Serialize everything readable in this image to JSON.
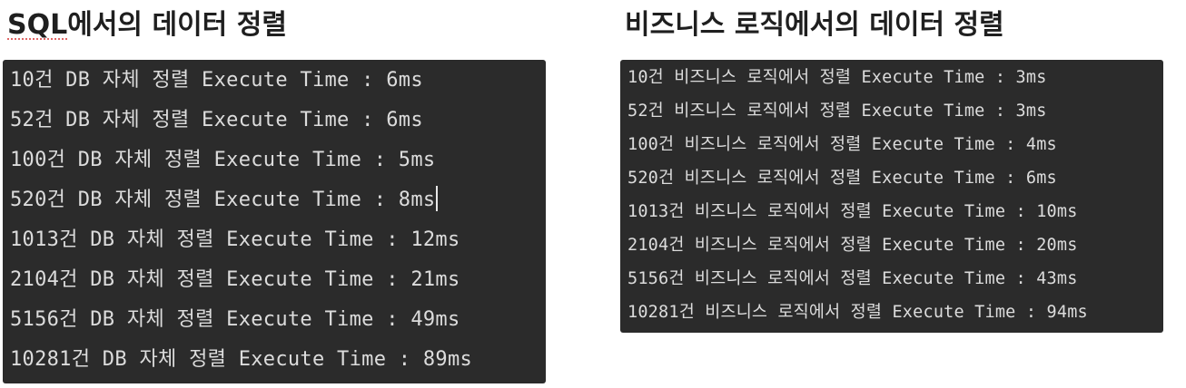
{
  "left": {
    "title_prefix": "SQL",
    "title_rest": "에서의 데이터 정렬",
    "lines": [
      "10건 DB 자체 정렬 Execute Time : 6ms",
      "52건 DB 자체 정렬 Execute Time : 6ms",
      "100건 DB 자체 정렬 Execute Time : 5ms",
      "520건 DB 자체 정렬 Execute Time : 8ms",
      "1013건 DB 자체 정렬 Execute Time : 12ms",
      "2104건 DB 자체 정렬 Execute Time : 21ms",
      "5156건 DB 자체 정렬 Execute Time : 49ms",
      "10281건 DB 자체 정렬 Execute Time : 89ms"
    ]
  },
  "right": {
    "title": "비즈니스 로직에서의 데이터 정렬",
    "lines": [
      "10건 비즈니스 로직에서 정렬 Execute Time : 3ms",
      "52건 비즈니스 로직에서 정렬 Execute Time : 3ms",
      "100건 비즈니스 로직에서 정렬 Execute Time : 4ms",
      "520건 비즈니스 로직에서 정렬 Execute Time : 6ms",
      "1013건 비즈니스 로직에서 정렬 Execute Time : 10ms",
      "2104건 비즈니스 로직에서 정렬 Execute Time : 20ms",
      "5156건 비즈니스 로직에서 정렬 Execute Time : 43ms",
      "10281건 비즈니스 로직에서 정렬 Execute Time : 94ms"
    ]
  },
  "colors": {
    "console_background": "#2b2b2b",
    "console_text": "#dcdcdc",
    "heading_text": "#1f1f1f",
    "spellcheck_underline": "#e06666"
  }
}
